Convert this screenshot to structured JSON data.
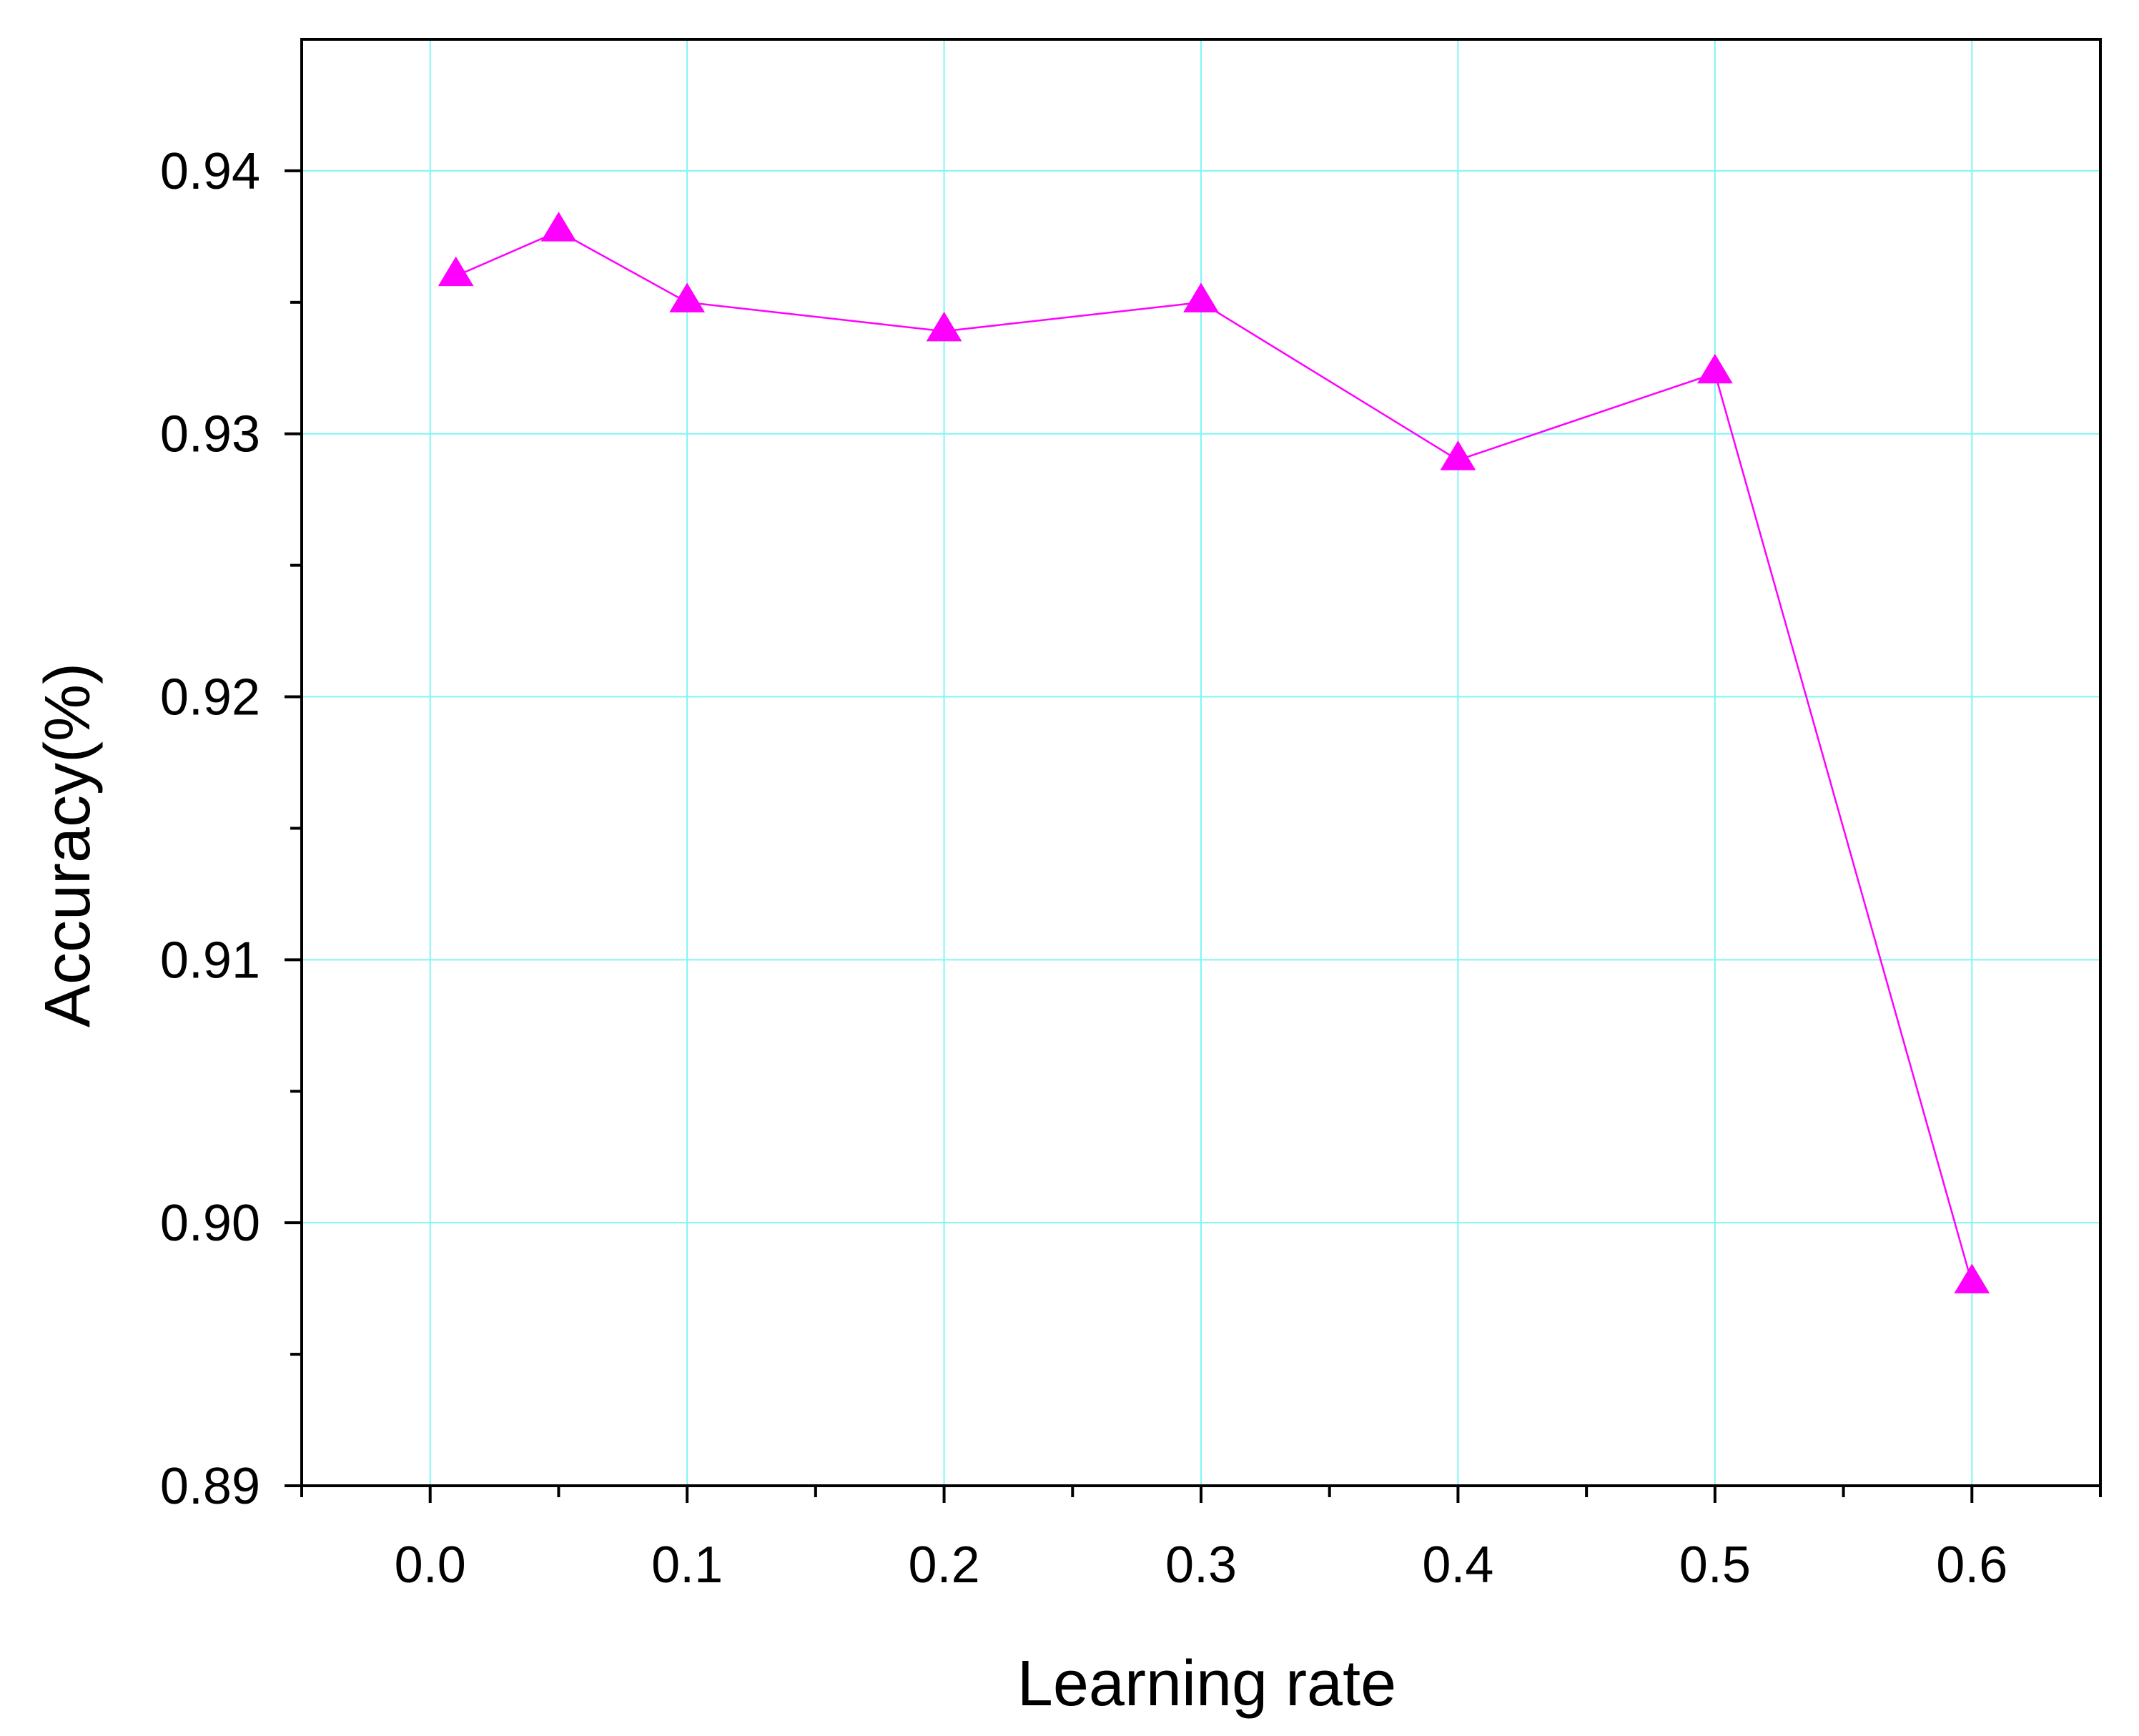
{
  "chart_data": {
    "type": "line",
    "xlabel": "Learning rate",
    "ylabel": "Accuracy(%)",
    "xlim": [
      -0.05,
      0.65
    ],
    "ylim": [
      0.89,
      0.945
    ],
    "x_ticks": [
      0.0,
      0.1,
      0.2,
      0.3,
      0.4,
      0.5,
      0.6
    ],
    "x_tick_labels": [
      "0.0",
      "0.1",
      "0.2",
      "0.3",
      "0.4",
      "0.5",
      "0.6"
    ],
    "x_minor_ticks": [
      -0.05,
      0.05,
      0.15,
      0.25,
      0.35,
      0.45,
      0.55,
      0.65
    ],
    "y_ticks": [
      0.89,
      0.9,
      0.91,
      0.92,
      0.93,
      0.94
    ],
    "y_tick_labels": [
      "0.89",
      "0.90",
      "0.91",
      "0.92",
      "0.93",
      "0.94"
    ],
    "y_minor_ticks": [
      0.895,
      0.905,
      0.915,
      0.925,
      0.935
    ],
    "grid": true,
    "colors": {
      "grid": "#7ff5f5",
      "series": "#ff00ff",
      "axis": "#000000"
    },
    "marker": "triangle-up",
    "series": [
      {
        "x": [
          0.01,
          0.05,
          0.1,
          0.2,
          0.3,
          0.4,
          0.5,
          0.6
        ],
        "values": [
          0.936,
          0.9377,
          0.935,
          0.9339,
          0.935,
          0.929,
          0.9323,
          0.8977
        ]
      }
    ]
  }
}
